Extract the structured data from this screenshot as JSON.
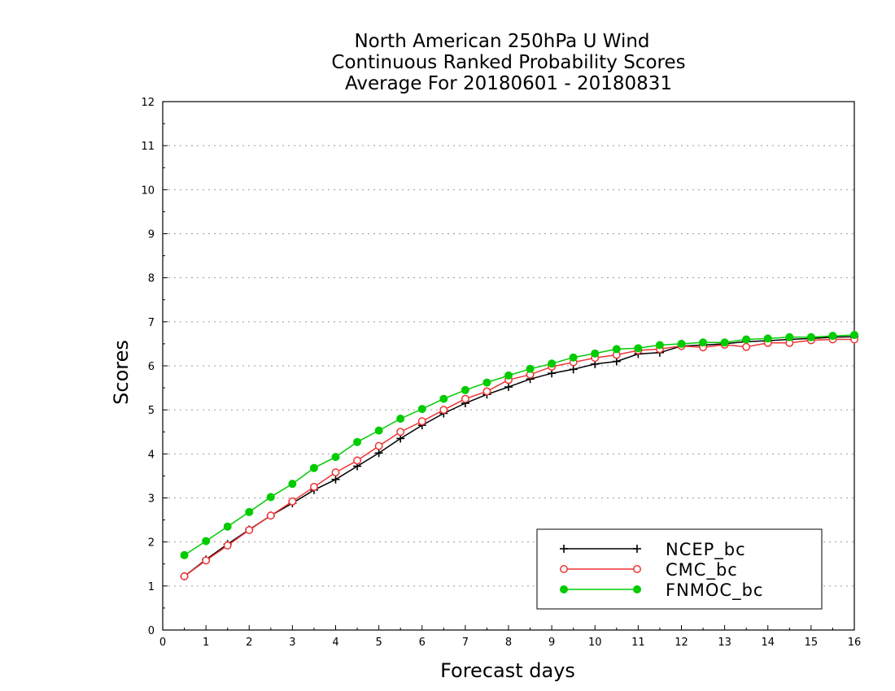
{
  "chart_data": {
    "type": "line",
    "title_lines": [
      "North American 250hPa U Wind",
      "Continuous Ranked Probability Scores",
      "Average For 20180601 - 20180831"
    ],
    "xlabel": "Forecast days",
    "ylabel": "Scores",
    "xlim": [
      0,
      16
    ],
    "ylim": [
      0,
      12
    ],
    "xticks": [
      "0",
      "1",
      "2",
      "3",
      "4",
      "5",
      "6",
      "7",
      "8",
      "9",
      "10",
      "11",
      "12",
      "13",
      "14",
      "15",
      "16"
    ],
    "yticks": [
      "0",
      "1",
      "2",
      "3",
      "4",
      "5",
      "6",
      "7",
      "8",
      "9",
      "10",
      "11",
      "12"
    ],
    "grid": true,
    "legend_position": "bottom-right",
    "x": [
      0.5,
      1,
      1.5,
      2,
      2.5,
      3,
      3.5,
      4,
      4.5,
      5,
      5.5,
      6,
      6.5,
      7,
      7.5,
      8,
      8.5,
      9,
      9.5,
      10,
      10.5,
      11,
      11.5,
      12,
      12.5,
      13,
      13.5,
      14,
      14.5,
      15,
      15.5,
      16
    ],
    "series": [
      {
        "name": "NCEP_bc",
        "color": "#000000",
        "marker": "plus",
        "values": [
          1.22,
          1.6,
          1.95,
          2.28,
          2.6,
          2.88,
          3.18,
          3.42,
          3.72,
          4.02,
          4.35,
          4.65,
          4.92,
          5.15,
          5.35,
          5.52,
          5.7,
          5.83,
          5.92,
          6.04,
          6.1,
          6.27,
          6.3,
          6.45,
          6.47,
          6.5,
          6.55,
          6.57,
          6.6,
          6.62,
          6.65,
          6.66
        ]
      },
      {
        "name": "CMC_bc",
        "color": "#ee3333",
        "marker": "open-circle",
        "values": [
          1.22,
          1.58,
          1.92,
          2.27,
          2.6,
          2.92,
          3.25,
          3.58,
          3.85,
          4.18,
          4.5,
          4.74,
          5.0,
          5.25,
          5.42,
          5.68,
          5.8,
          5.98,
          6.08,
          6.18,
          6.25,
          6.35,
          6.38,
          6.45,
          6.42,
          6.48,
          6.43,
          6.52,
          6.52,
          6.58,
          6.6,
          6.6
        ]
      },
      {
        "name": "FNMOC_bc",
        "color": "#00cc00",
        "marker": "filled-circle",
        "values": [
          1.7,
          2.02,
          2.35,
          2.68,
          3.02,
          3.32,
          3.68,
          3.93,
          4.27,
          4.53,
          4.8,
          5.02,
          5.25,
          5.45,
          5.62,
          5.78,
          5.93,
          6.05,
          6.19,
          6.28,
          6.38,
          6.4,
          6.47,
          6.5,
          6.53,
          6.53,
          6.6,
          6.62,
          6.65,
          6.65,
          6.68,
          6.7
        ]
      }
    ]
  }
}
